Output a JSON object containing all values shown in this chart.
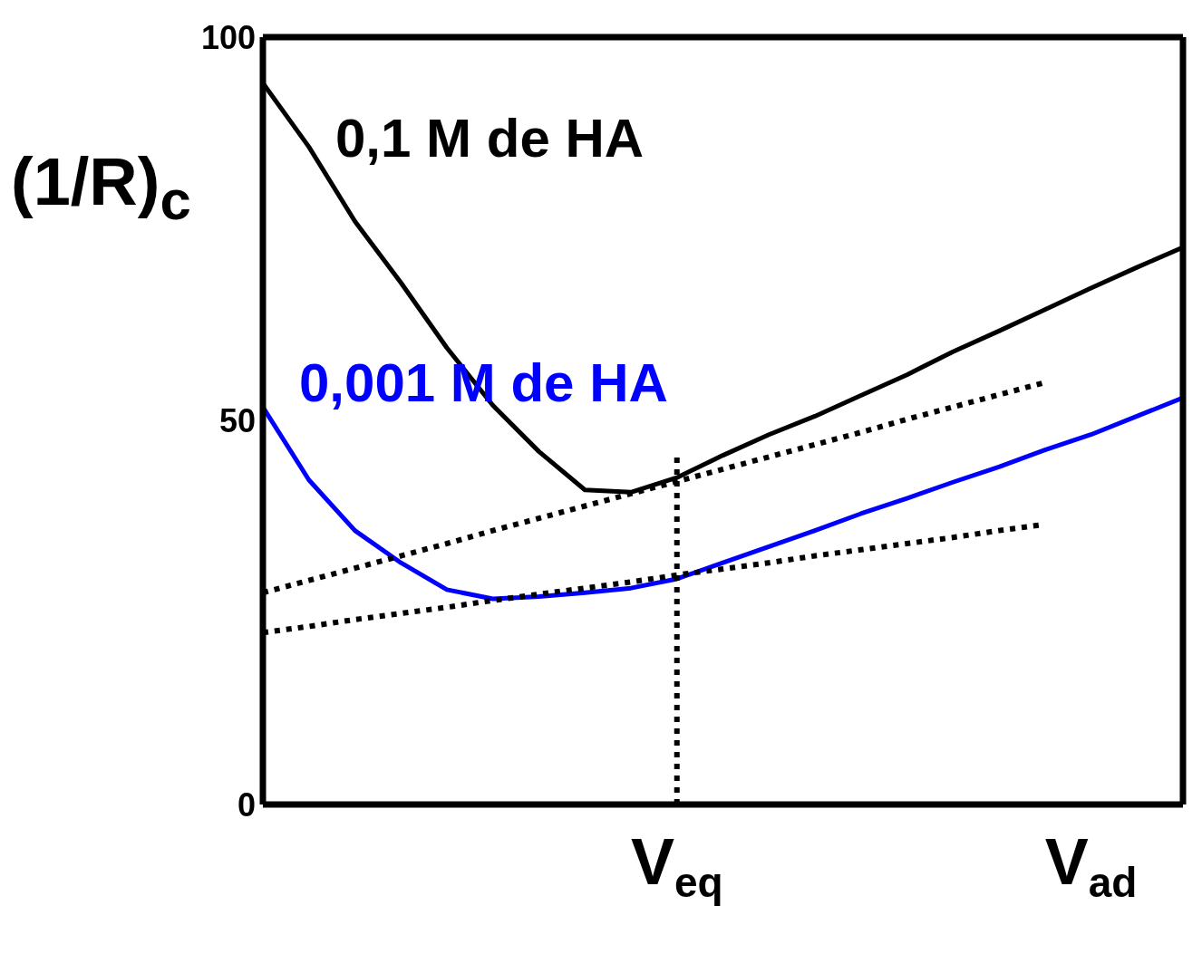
{
  "chart_data": {
    "type": "line",
    "ylabel": "(1/R)$_{c}$",
    "categories": [
      null,
      null,
      null,
      null,
      null,
      null,
      null,
      null,
      null,
      "V$_{eq}$",
      null,
      null,
      null,
      null,
      null,
      null,
      null,
      null,
      "V$_{ad}$",
      null,
      null
    ],
    "ylim": [
      0,
      100
    ],
    "yticks": [
      0,
      50,
      100
    ],
    "legend": false,
    "marker": "none",
    "series": [
      {
        "name": "0,1 M de HA",
        "color": "#000000",
        "line_style": "solid",
        "values": [
          94,
          85.7,
          76,
          68,
          59.5,
          52,
          46,
          41,
          40.7,
          42.6,
          45.5,
          48.2,
          50.6,
          53.3,
          56,
          59,
          61.7,
          64.5,
          67.3,
          70,
          72.6
        ]
      },
      {
        "name": "0,001 M de HA",
        "color": "#0000ff",
        "line_style": "solid",
        "values": [
          51.8,
          42.3,
          35.7,
          31.5,
          28,
          26.8,
          27.1,
          27.6,
          28.2,
          29.4,
          31.5,
          33.6,
          35.7,
          37.9,
          39.9,
          42,
          44,
          46.2,
          48.2,
          50.6,
          53
        ]
      },
      {
        "color": "#000000",
        "line_style": "dotted",
        "values": [
          27.6,
          29.2,
          30.8,
          32.4,
          34.0,
          35.7,
          37.3,
          38.9,
          40.5,
          42.1,
          43.7,
          45.3,
          46.9,
          48.5,
          50.2,
          51.8,
          53.4,
          55.0,
          null,
          null,
          null
        ]
      },
      {
        "color": "#000000",
        "line_style": "dotted",
        "values": [
          22.4,
          23.2,
          24.1,
          24.9,
          25.7,
          26.6,
          27.4,
          28.2,
          29.0,
          29.9,
          30.7,
          31.5,
          32.4,
          33.2,
          34.0,
          34.8,
          35.7,
          36.5,
          null,
          null,
          null
        ]
      },
      {
        "color": "#000000",
        "line_style": "dotted",
        "x": [
          "V$_{eq}$",
          "V$_{eq}$"
        ],
        "values": [
          0,
          46
        ]
      }
    ]
  }
}
